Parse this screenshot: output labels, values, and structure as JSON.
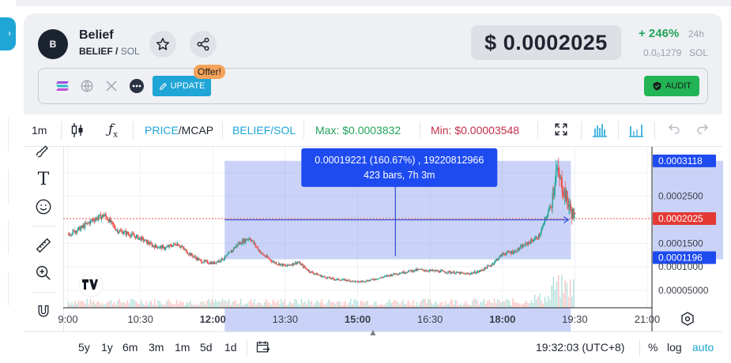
{
  "token": {
    "avatar_letter": "B",
    "name": "Belief",
    "symbol": "BELIEF",
    "quote": "SOL",
    "price": "$ 0.0002025",
    "change": "+ 246%",
    "change_period": "24h",
    "mcap_value": "0.0₀1279",
    "mcap_unit": "SOL"
  },
  "links": {
    "update_label": "UPDATE",
    "offer_badge": "Offer!",
    "audit_label": "AUDIT"
  },
  "toolbar": {
    "interval": "1m",
    "price_label": "PRICE",
    "mcap_label": "/MCAP",
    "pair_label": "BELIEF/SOL",
    "max_label": "Max: $0.0003832",
    "min_label": "Min: $0.00003548"
  },
  "colors": {
    "accent": "#1fa5d6",
    "up": "#26a69a",
    "down": "#ef5350",
    "max_green": "#22a35a",
    "min_red": "#c0304a",
    "measure_fill": "#5b77e6",
    "badge_blue": "#1e4bf0",
    "price_label_red": "#e53935"
  },
  "chart": {
    "measure_line1": "0.00019221 (160.67%) , 19220812966",
    "measure_line2": "423 bars, 7h 3m",
    "price_axis": [
      "0.0003118",
      "0.0002500",
      "0.0002025",
      "0.0001500",
      "0.0001196",
      "0.0001000",
      "0.00005000"
    ],
    "time_axis": [
      "9:00",
      "10:30",
      "12:00",
      "13:30",
      "15:00",
      "16:30",
      "18:00",
      "19:30",
      "21:00"
    ],
    "bold_times": [
      "12:00",
      "15:00",
      "18:00"
    ],
    "watermark": "TV"
  },
  "chart_data": {
    "type": "candlestick",
    "title": "",
    "x_range": [
      "09:00",
      "21:00"
    ],
    "ylim": [
      2e-05,
      0.000345
    ],
    "current_price": 0.0002025,
    "measure": {
      "from": 0.0001196,
      "to": 0.0003118,
      "change": "160.67%",
      "bars": 423,
      "duration": "7h 3m"
    },
    "series": [
      {
        "values": [
          [
            9.0,
            0.00017
          ],
          [
            9.25,
            0.000182
          ],
          [
            9.5,
            0.0002
          ],
          [
            9.75,
            0.00021
          ],
          [
            10.0,
            0.000178
          ],
          [
            10.25,
            0.00017
          ],
          [
            10.5,
            0.00016
          ],
          [
            10.75,
            0.000145
          ],
          [
            11.0,
            0.00014
          ],
          [
            11.25,
            0.00015
          ],
          [
            11.5,
            0.000128
          ],
          [
            11.75,
            0.000112
          ],
          [
            12.0,
            0.000108
          ],
          [
            12.25,
            0.00012
          ],
          [
            12.5,
            0.000148
          ],
          [
            12.75,
            0.000162
          ],
          [
            13.0,
            0.000128
          ],
          [
            13.25,
            0.00011
          ],
          [
            13.5,
            0.000102
          ],
          [
            13.75,
            0.00011
          ],
          [
            14.0,
            9e-05
          ],
          [
            14.25,
            8e-05
          ],
          [
            14.5,
            7.4e-05
          ],
          [
            14.75,
            7.2e-05
          ],
          [
            15.0,
            6.8e-05
          ],
          [
            15.25,
            7.2e-05
          ],
          [
            15.5,
            7.8e-05
          ],
          [
            15.75,
            8.5e-05
          ],
          [
            16.0,
            9e-05
          ],
          [
            16.25,
            9.4e-05
          ],
          [
            16.5,
            9.2e-05
          ],
          [
            16.75,
            9e-05
          ],
          [
            17.0,
            8.8e-05
          ],
          [
            17.25,
            8.5e-05
          ],
          [
            17.5,
            9e-05
          ],
          [
            17.75,
            0.000104
          ],
          [
            18.0,
            0.000128
          ],
          [
            18.25,
            0.000133
          ],
          [
            18.5,
            0.00015
          ],
          [
            18.75,
            0.000165
          ],
          [
            19.0,
            0.000235
          ],
          [
            19.1,
            0.000305
          ],
          [
            19.25,
            0.000265
          ],
          [
            19.4,
            0.00022
          ],
          [
            19.5,
            0.000202
          ]
        ]
      }
    ]
  },
  "bottom": {
    "ranges": [
      "5y",
      "1y",
      "6m",
      "3m",
      "1m",
      "5d",
      "1d"
    ],
    "clock": "19:32:03 (UTC+8)",
    "percent": "%",
    "log": "log",
    "auto": "auto"
  }
}
